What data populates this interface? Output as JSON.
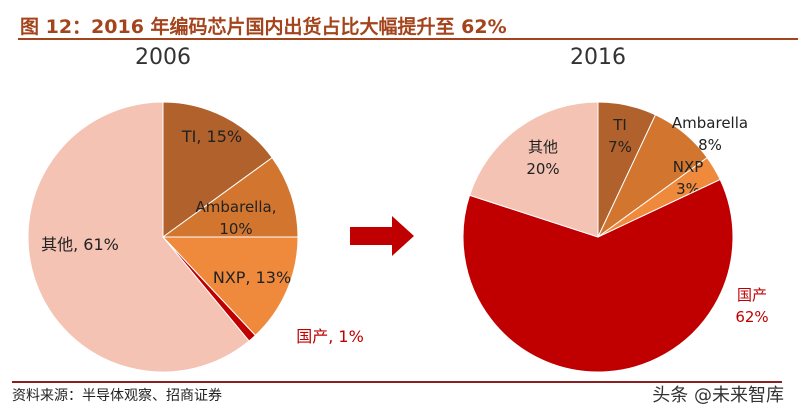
{
  "title": "图 12：2016 年编码芯片国内出货占比大幅提升至 62%",
  "source": "资料来源：半导体观察、招商证券",
  "watermark": "头条 @未来智库",
  "arrow_color": "#c00000",
  "chart_data": [
    {
      "type": "pie",
      "title": "2006",
      "start": "12 o'clock",
      "direction": "clockwise",
      "slices": [
        {
          "name": "TI",
          "value": 15,
          "label": "TI, 15%",
          "color": "#b0612c"
        },
        {
          "name": "Ambarella",
          "value": 10,
          "label": "Ambarella, 10%",
          "color": "#d2762f"
        },
        {
          "name": "NXP",
          "value": 13,
          "label": "NXP, 13%",
          "color": "#ef8a3c"
        },
        {
          "name": "国产",
          "value": 1,
          "label": "国产, 1%",
          "color": "#c00000"
        },
        {
          "name": "其他",
          "value": 61,
          "label": "其他, 61%",
          "color": "#f4c3b3"
        }
      ]
    },
    {
      "type": "pie",
      "title": "2016",
      "start": "12 o'clock",
      "direction": "clockwise",
      "slices": [
        {
          "name": "TI",
          "value": 7,
          "label": "TI 7%",
          "color": "#b0612c"
        },
        {
          "name": "Ambarella",
          "value": 8,
          "label": "Ambarella 8%",
          "color": "#d2762f"
        },
        {
          "name": "NXP",
          "value": 3,
          "label": "NXP 3%",
          "color": "#ef8a3c"
        },
        {
          "name": "国产",
          "value": 62,
          "label": "国产 62%",
          "color": "#c00000"
        },
        {
          "name": "其他",
          "value": 20,
          "label": "其他 20%",
          "color": "#f4c3b3"
        }
      ]
    }
  ]
}
